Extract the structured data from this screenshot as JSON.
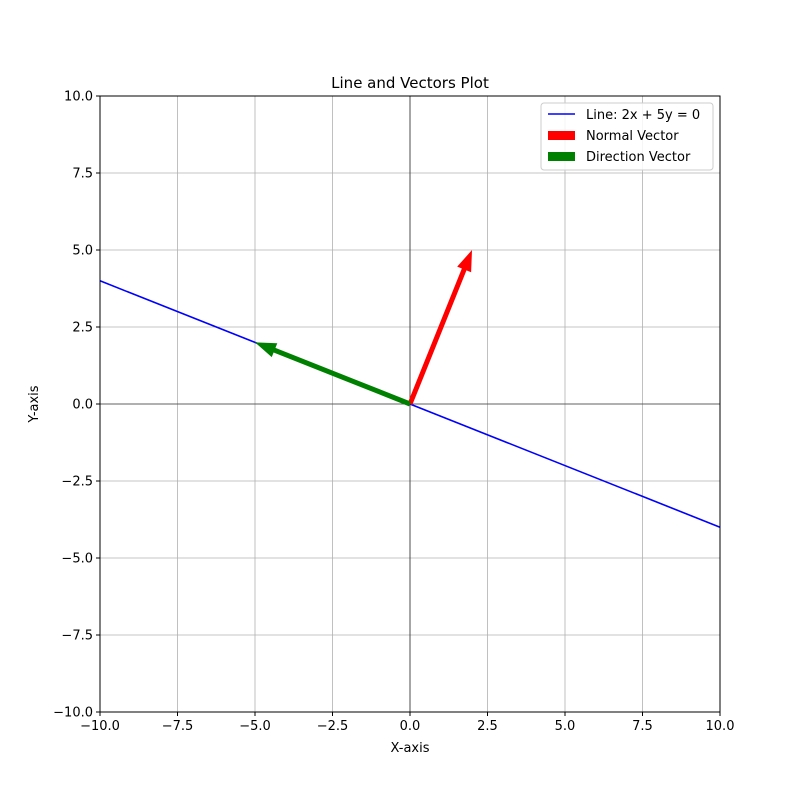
{
  "chart_data": {
    "type": "line",
    "title": "Line and Vectors Plot",
    "xlabel": "X-axis",
    "ylabel": "Y-axis",
    "xlim": [
      -10,
      10
    ],
    "ylim": [
      -10,
      10
    ],
    "grid": true,
    "legend_position": "top-right",
    "x_ticks": [
      -10.0,
      -7.5,
      -5.0,
      -2.5,
      0.0,
      2.5,
      5.0,
      7.5,
      10.0
    ],
    "y_ticks": [
      -10.0,
      -7.5,
      -5.0,
      -2.5,
      0.0,
      2.5,
      5.0,
      7.5,
      10.0
    ],
    "x_tick_labels": [
      "−10.0",
      "−7.5",
      "−5.0",
      "−2.5",
      "0.0",
      "2.5",
      "5.0",
      "7.5",
      "10.0"
    ],
    "y_tick_labels": [
      "−10.0",
      "−7.5",
      "−5.0",
      "−2.5",
      "0.0",
      "2.5",
      "5.0",
      "7.5",
      "10.0"
    ],
    "line": {
      "name": "Line: 2x + 5y = 0",
      "color": "#0000ff",
      "x": [
        -10,
        10
      ],
      "y": [
        4,
        -4
      ]
    },
    "vectors": [
      {
        "name": "Normal Vector",
        "color": "#ff0000",
        "origin": [
          0,
          0
        ],
        "components": [
          2,
          5
        ]
      },
      {
        "name": "Direction Vector",
        "color": "#008000",
        "origin": [
          0,
          0
        ],
        "components": [
          -5,
          2
        ]
      }
    ]
  }
}
